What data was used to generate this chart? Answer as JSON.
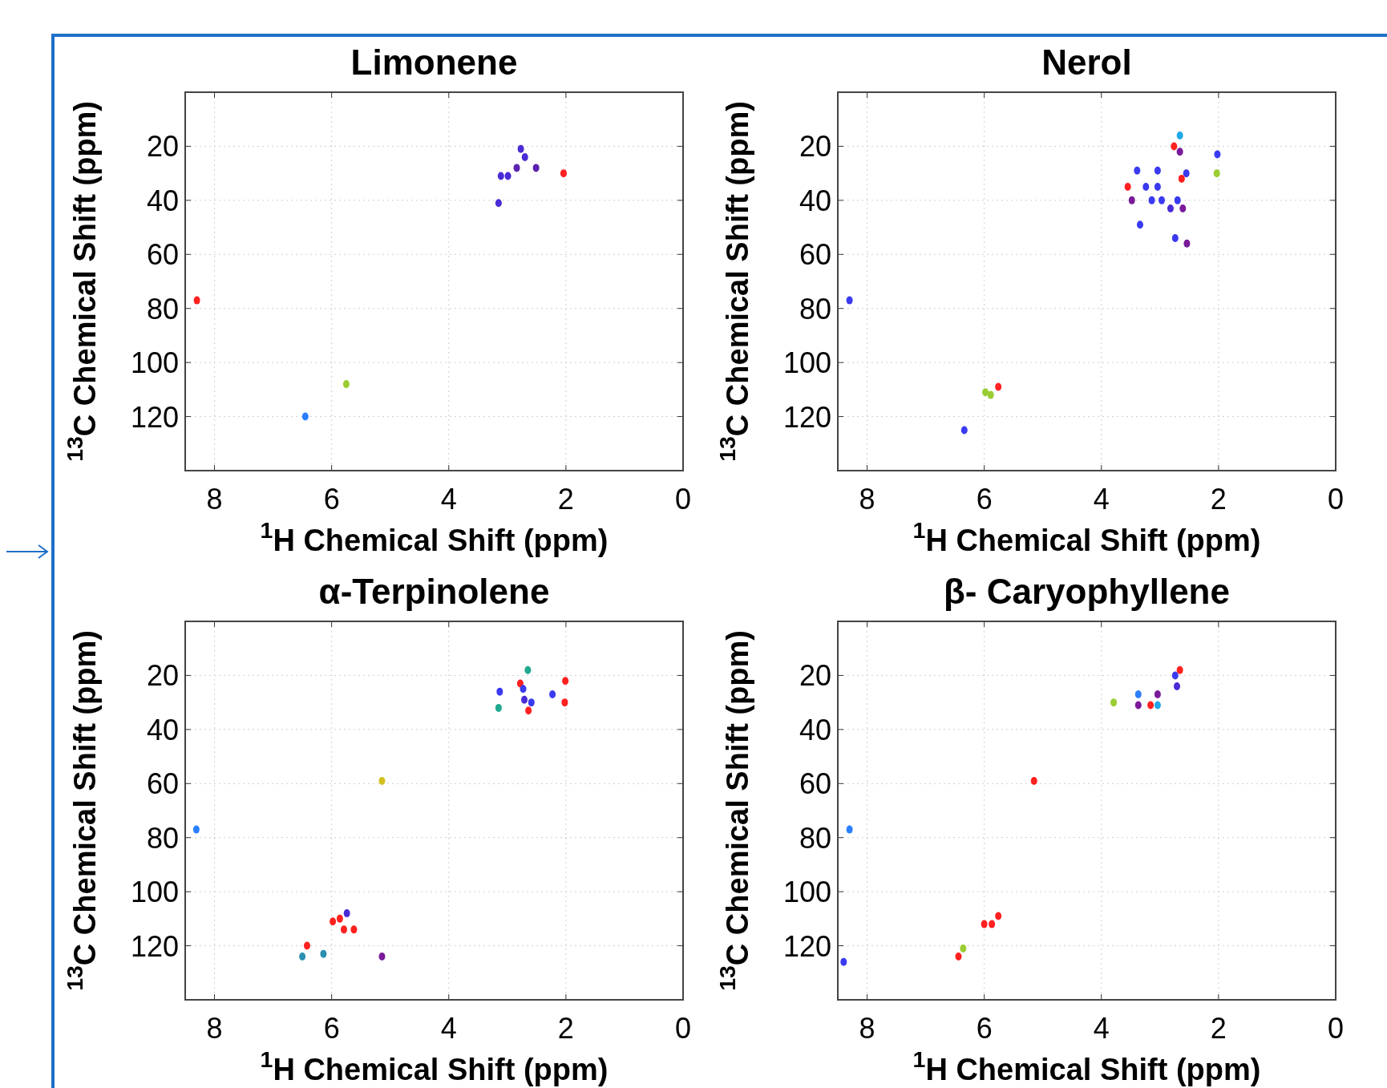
{
  "chart_data": [
    {
      "type": "scatter",
      "title": "Limonene",
      "xlabel": "$^{1}$H Chemical Shift (ppm)",
      "ylabel": "$^{13}$C Chemical Shift (ppm)",
      "xlim": [
        8.5,
        0
      ],
      "ylim": [
        140,
        0
      ],
      "xticks": [
        8,
        6,
        4,
        2,
        0
      ],
      "yticks": [
        20,
        40,
        60,
        80,
        100,
        120
      ],
      "grid": true,
      "marker": "circle",
      "series": [
        {
          "x": [
            2.77,
            2.7,
            2.84,
            2.51,
            3.11,
            2.99,
            3.15,
            2.04,
            8.3,
            5.75,
            6.45
          ],
          "values": [
            21,
            24,
            28,
            28,
            31,
            31,
            41,
            30,
            77,
            108,
            120
          ],
          "colors": [
            "#4b2bd6",
            "#4b2bd6",
            "#5a22b0",
            "#5a22b0",
            "#4b2bd6",
            "#4b2bd6",
            "#4b2bd6",
            "#ff2020",
            "#ff2020",
            "#9acd32",
            "#2a7fff"
          ]
        }
      ]
    },
    {
      "type": "scatter",
      "title": "Nerol",
      "xlabel": "$^{1}$H Chemical Shift (ppm)",
      "ylabel": "$^{13}$C Chemical Shift (ppm)",
      "xlim": [
        8.5,
        0
      ],
      "ylim": [
        140,
        0
      ],
      "xticks": [
        8,
        6,
        4,
        2,
        0
      ],
      "yticks": [
        20,
        40,
        60,
        80,
        100,
        120
      ],
      "grid": true,
      "marker": "circle",
      "series": [
        {
          "x": [
            2.66,
            2.76,
            2.66,
            2.02,
            2.03,
            3.39,
            3.04,
            2.55,
            2.63,
            3.24,
            3.04,
            3.55,
            3.14,
            2.97,
            2.7,
            3.48,
            2.82,
            2.61,
            3.34,
            2.74,
            2.54,
            8.3,
            5.98,
            5.89,
            5.76,
            6.34
          ],
          "values": [
            16,
            20,
            22,
            23,
            30,
            29,
            29,
            30,
            32,
            35,
            35,
            35,
            40,
            40,
            40,
            40,
            43,
            43,
            49,
            54,
            56,
            77,
            111,
            112,
            109,
            125
          ],
          "colors": [
            "#20a8e8",
            "#ff2020",
            "#7a1a9a",
            "#3a3af0",
            "#9acd32",
            "#3a3af0",
            "#3a3af0",
            "#3a3af0",
            "#ff2020",
            "#3a3af0",
            "#3a3af0",
            "#ff2020",
            "#3a3af0",
            "#3a3af0",
            "#3a3af0",
            "#7a1a9a",
            "#4b2bd6",
            "#7a1a9a",
            "#3a3af0",
            "#3a3af0",
            "#7a1a9a",
            "#3a3af0",
            "#9acd32",
            "#9acd32",
            "#ff2020",
            "#3a3af0"
          ]
        }
      ]
    },
    {
      "type": "scatter",
      "title": "α-Terpinolene",
      "xlabel": "$^{1}$H Chemical Shift (ppm)",
      "ylabel": "$^{13}$C Chemical Shift (ppm)",
      "xlim": [
        8.5,
        0
      ],
      "ylim": [
        140,
        0
      ],
      "xticks": [
        8,
        6,
        4,
        2,
        0
      ],
      "yticks": [
        20,
        40,
        60,
        80,
        100,
        120
      ],
      "grid": true,
      "marker": "circle",
      "series": [
        {
          "x": [
            2.65,
            2.78,
            2.73,
            3.13,
            3.15,
            2.01,
            2.02,
            2.23,
            2.71,
            2.59,
            2.64,
            8.31,
            5.14,
            5.98,
            5.86,
            5.74,
            5.79,
            5.62,
            6.42,
            6.5,
            6.14,
            5.14
          ],
          "values": [
            18,
            23,
            25,
            26,
            32,
            22,
            30,
            27,
            29,
            30,
            33,
            77,
            59,
            111,
            110,
            108,
            114,
            114,
            120,
            124,
            123,
            124
          ],
          "colors": [
            "#20a890",
            "#ff2020",
            "#3a3af0",
            "#3a3af0",
            "#20a890",
            "#ff2020",
            "#ff2020",
            "#3a3af0",
            "#4b2bd6",
            "#3a3af0",
            "#ff2020",
            "#2a7fff",
            "#d4c020",
            "#ff2020",
            "#ff2020",
            "#4b2bd6",
            "#ff2020",
            "#ff2020",
            "#ff2020",
            "#2a8fb0",
            "#2a8fb0",
            "#7a1a9a"
          ]
        }
      ]
    },
    {
      "type": "scatter",
      "title": "β- Caryophyllene",
      "xlabel": "$^{1}$H Chemical Shift (ppm)",
      "ylabel": "$^{13}$C Chemical Shift (ppm)",
      "xlim": [
        8.5,
        0
      ],
      "ylim": [
        140,
        0
      ],
      "xticks": [
        8,
        6,
        4,
        2,
        0
      ],
      "yticks": [
        20,
        40,
        60,
        80,
        100,
        120
      ],
      "grid": true,
      "marker": "circle",
      "series": [
        {
          "x": [
            2.66,
            2.74,
            2.71,
            3.79,
            3.37,
            3.04,
            3.37,
            3.16,
            3.04,
            5.15,
            8.3,
            8.4,
            6.36,
            6.44,
            6.0,
            5.87,
            5.76
          ],
          "values": [
            18,
            20,
            24,
            30,
            27,
            27,
            31,
            31,
            31,
            59,
            77,
            126,
            121,
            124,
            112,
            112,
            109
          ],
          "colors": [
            "#ff2020",
            "#3a3af0",
            "#4b2bd6",
            "#9acd32",
            "#2a7fff",
            "#7a1a9a",
            "#7a1a9a",
            "#ff2020",
            "#20a8e8",
            "#ff2020",
            "#2a7fff",
            "#3a3af0",
            "#9acd32",
            "#ff2020",
            "#ff2020",
            "#ff2020",
            "#ff2020"
          ]
        }
      ]
    }
  ]
}
